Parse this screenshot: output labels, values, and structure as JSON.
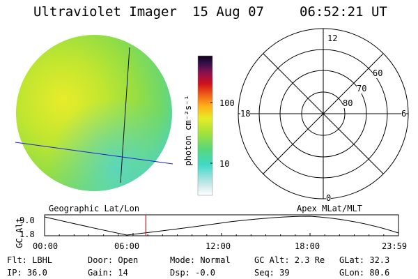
{
  "header": {
    "instrument": "Ultraviolet Imager",
    "date": "15 Aug 07",
    "time": "06:52:21 UT"
  },
  "colorbar": {
    "unit_label": "photon cm⁻²s⁻¹",
    "tick_100": "100",
    "tick_10": "10"
  },
  "polar": {
    "mlt_12": "12",
    "mlt_18": "18",
    "mlt_6": "6",
    "mlt_0": "0",
    "lat_60": "60",
    "lat_70": "70",
    "lat_80": "80"
  },
  "orbit": {
    "left_label": "Geographic Lat/Lon",
    "right_label": "Apex MLat/MLT",
    "axis_label": "GC Alt",
    "y_top": "9.0",
    "y_bottom": "1.8",
    "x_ticks": [
      "00:00",
      "06:00",
      "12:00",
      "18:00",
      "23:59"
    ],
    "current_time_hours": 6.87
  },
  "info": {
    "flt": "Flt: LBHL",
    "ip": "IP: 36.0",
    "door": "Door: Open",
    "gain": "Gain: 14",
    "mode": "Mode: Normal",
    "dsp": "Dsp:   -0.0",
    "gc_alt": "GC Alt: 2.3 Re",
    "seq": "Seq: 39",
    "glat": "GLat:  32.3",
    "glon": "GLon:  80.6"
  },
  "colors": {
    "earth_green": "#a4e23a",
    "earth_yellow": "#dde826",
    "earth_cyan": "#53d9a8",
    "blue_line": "#1e1ed8",
    "marker_red": "#d01010"
  }
}
